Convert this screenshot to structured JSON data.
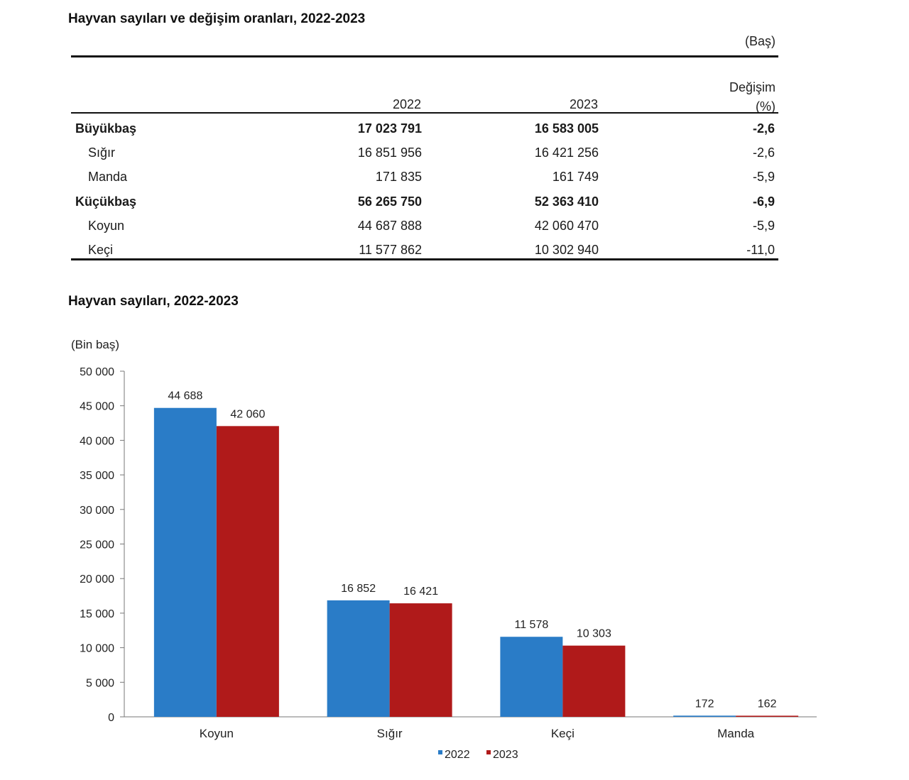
{
  "table": {
    "title": "Hayvan sayıları ve değişim oranları, 2022-2023",
    "unit": "(Baş)",
    "headers": {
      "col1": "2022",
      "col2": "2023",
      "change_line1": "Değişim",
      "change_line2": "(%)"
    },
    "rows": [
      {
        "label": "Büyükbaş",
        "v2022": "17 023 791",
        "v2023": "16 583 005",
        "change": "-2,6",
        "bold": true
      },
      {
        "label": "Sığır",
        "v2022": "16 851 956",
        "v2023": "16 421 256",
        "change": "-2,6",
        "bold": false
      },
      {
        "label": "Manda",
        "v2022": "171 835",
        "v2023": "161 749",
        "change": "-5,9",
        "bold": false
      },
      {
        "label": "Küçükbaş",
        "v2022": "56 265 750",
        "v2023": "52 363 410",
        "change": "-6,9",
        "bold": true
      },
      {
        "label": "Koyun",
        "v2022": "44 687 888",
        "v2023": "42 060 470",
        "change": "-5,9",
        "bold": false
      },
      {
        "label": "Keçi",
        "v2022": "11 577 862",
        "v2023": "10 302 940",
        "change": "-11,0",
        "bold": false
      }
    ]
  },
  "chart_data": {
    "type": "bar",
    "title": "Hayvan sayıları, 2022-2023",
    "ylabel": "(Bin baş)",
    "xlabel": "",
    "categories": [
      "Koyun",
      "Sığır",
      "Keçi",
      "Manda"
    ],
    "series": [
      {
        "name": "2022",
        "values": [
          44688,
          16852,
          11578,
          172
        ],
        "labels": [
          "44 688",
          "16 852",
          "11 578",
          "172"
        ],
        "color": "#2a7cc7"
      },
      {
        "name": "2023",
        "values": [
          42060,
          16421,
          10303,
          162
        ],
        "labels": [
          "42 060",
          "16 421",
          "10 303",
          "162"
        ],
        "color": "#b01a1a"
      }
    ],
    "ylim": [
      0,
      50000
    ],
    "yticks": [
      0,
      5000,
      10000,
      15000,
      20000,
      25000,
      30000,
      35000,
      40000,
      45000,
      50000
    ],
    "ytick_labels": [
      "0",
      "5 000",
      "10 000",
      "15 000",
      "20 000",
      "25 000",
      "30 000",
      "35 000",
      "40 000",
      "45 000",
      "50 000"
    ],
    "grid": false,
    "legend_position": "bottom"
  }
}
